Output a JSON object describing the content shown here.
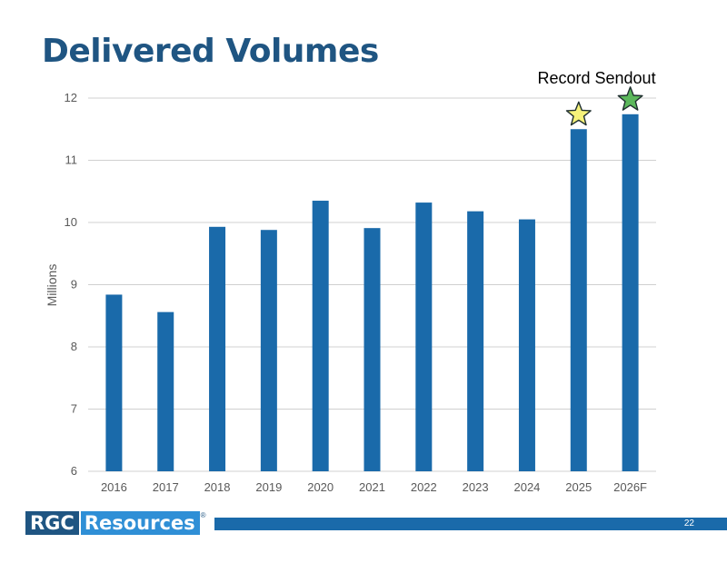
{
  "page": {
    "title": "Delivered Volumes",
    "page_number": "22",
    "logo": {
      "part1": "RGC",
      "part2": "Resources",
      "mark": "®"
    }
  },
  "chart_data": {
    "type": "bar",
    "title": "Delivered Volumes",
    "xlabel": "",
    "ylabel": "Millions",
    "ylim": [
      6,
      12
    ],
    "yticks": [
      6,
      7,
      8,
      9,
      10,
      11,
      12
    ],
    "grid": true,
    "categories": [
      "2016",
      "2017",
      "2018",
      "2019",
      "2020",
      "2021",
      "2022",
      "2023",
      "2024",
      "2025",
      "2026F"
    ],
    "values": [
      8.84,
      8.56,
      9.93,
      9.88,
      10.35,
      9.91,
      10.32,
      10.18,
      10.05,
      11.5,
      11.74
    ],
    "bar_color": "#1a6aaa",
    "annotations": [
      {
        "text": "Record Sendout",
        "category": "2026F"
      }
    ],
    "markers": [
      {
        "type": "star-icon",
        "category": "2025",
        "color": "#f5f27a"
      },
      {
        "type": "star-icon",
        "category": "2026F",
        "color": "#5cb85c"
      }
    ]
  }
}
